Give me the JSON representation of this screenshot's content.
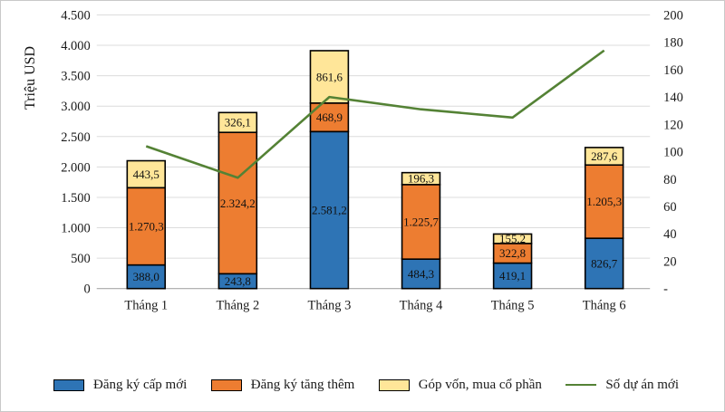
{
  "chart_data": {
    "type": "bar+line-combo",
    "stacked": true,
    "grid": true,
    "legend_position": "bottom",
    "categories": [
      "Tháng 1",
      "Tháng 2",
      "Tháng 3",
      "Tháng 4",
      "Tháng 5",
      "Tháng 6"
    ],
    "left_axis": {
      "title": "Triệu USD",
      "min": 0,
      "max": 4500,
      "step": 500,
      "tick_labels": [
        "0",
        "500",
        "1.000",
        "1.500",
        "2.000",
        "2.500",
        "3.000",
        "3.500",
        "4.000",
        "4.500"
      ]
    },
    "right_axis": {
      "min": 0,
      "max": 200,
      "step": 20,
      "tick_labels": [
        "-",
        "20",
        "40",
        "60",
        "80",
        "100",
        "120",
        "140",
        "160",
        "180",
        "200"
      ]
    },
    "bar_series": [
      {
        "id": "dang-ky-cap-moi",
        "name": "Đăng ký cấp mới",
        "color": "#2E74B5",
        "values": [
          388.0,
          243.8,
          2581.2,
          484.3,
          419.1,
          826.7
        ],
        "labels": [
          "388,0",
          "243,8",
          "2.581,2",
          "484,3",
          "419,1",
          "826,7"
        ]
      },
      {
        "id": "dang-ky-tang-them",
        "name": "Đăng ký tăng thêm",
        "color": "#ED7D31",
        "values": [
          1270.3,
          2324.2,
          468.9,
          1225.7,
          322.8,
          1205.3
        ],
        "labels": [
          "1.270,3",
          "2.324,2",
          "468,9",
          "1.225,7",
          "322,8",
          "1.205,3"
        ]
      },
      {
        "id": "gop-von-mua-co-phan",
        "name": "Góp vốn, mua cổ phần",
        "color": "#FFE699",
        "values": [
          443.5,
          326.1,
          861.6,
          196.3,
          155.2,
          287.6
        ],
        "labels": [
          "443,5",
          "326,1",
          "861,6",
          "196,3",
          "155,2",
          "287,6"
        ]
      }
    ],
    "line_series": {
      "id": "so-du-an-moi",
      "name": "Số dự án mới",
      "color": "#548235",
      "values": [
        104,
        81,
        140,
        131,
        125,
        174
      ]
    },
    "colors": {
      "gridline": "#DCDCDC",
      "axis_line": "#A8A8A8",
      "bar_border": "#000000",
      "text": "#1a1a1a"
    }
  }
}
